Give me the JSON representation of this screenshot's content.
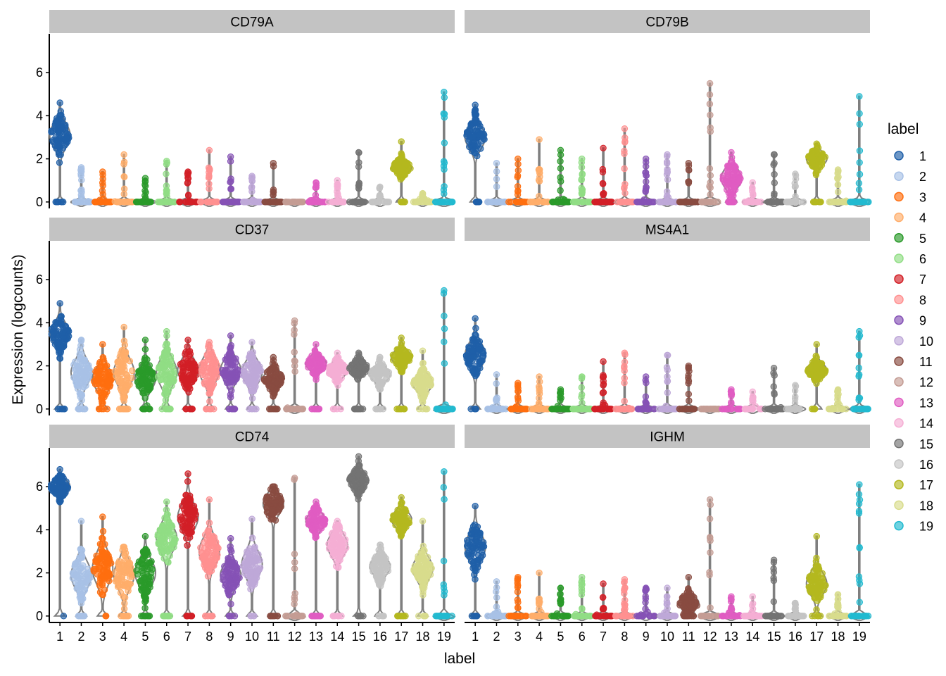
{
  "chart_data": {
    "type": "violin",
    "xlabel": "label",
    "ylabel": "Expression (logcounts)",
    "ylim": [
      -0.3,
      7.8
    ],
    "yticks": [
      0,
      2,
      4,
      6
    ],
    "categories": [
      "1",
      "2",
      "3",
      "4",
      "5",
      "6",
      "7",
      "8",
      "9",
      "10",
      "11",
      "12",
      "13",
      "14",
      "15",
      "16",
      "17",
      "18",
      "19"
    ],
    "legend": {
      "title": "label",
      "position": "right",
      "items": [
        {
          "label": "1",
          "color": "#1f5fa8"
        },
        {
          "label": "2",
          "color": "#a8c1e6"
        },
        {
          "label": "3",
          "color": "#ff6e0f"
        },
        {
          "label": "4",
          "color": "#ffad6a"
        },
        {
          "label": "5",
          "color": "#2a9a2a"
        },
        {
          "label": "6",
          "color": "#90dd84"
        },
        {
          "label": "7",
          "color": "#d21f26"
        },
        {
          "label": "8",
          "color": "#ff9090"
        },
        {
          "label": "9",
          "color": "#8552b6"
        },
        {
          "label": "10",
          "color": "#bea8d8"
        },
        {
          "label": "11",
          "color": "#894b40"
        },
        {
          "label": "12",
          "color": "#c49c94"
        },
        {
          "label": "13",
          "color": "#e05cc2"
        },
        {
          "label": "14",
          "color": "#f5aed4"
        },
        {
          "label": "15",
          "color": "#737373"
        },
        {
          "label": "16",
          "color": "#c4c4c4"
        },
        {
          "label": "17",
          "color": "#b4b81f"
        },
        {
          "label": "18",
          "color": "#d8dc8c"
        },
        {
          "label": "19",
          "color": "#22bad0"
        }
      ]
    },
    "panels": [
      {
        "title": "CD79A",
        "max": [
          4.6,
          1.6,
          1.4,
          2.2,
          1.1,
          1.9,
          1.4,
          2.4,
          2.1,
          1.2,
          1.8,
          0.0,
          0.9,
          1.0,
          2.3,
          0.7,
          2.8,
          0.4,
          5.1
        ],
        "center": [
          3.1,
          0,
          0,
          0,
          0,
          0,
          0,
          0,
          0,
          0,
          0,
          0,
          0,
          0,
          0,
          0,
          1.6,
          0,
          0
        ],
        "spread": [
          0.55,
          0.1,
          0.1,
          0.1,
          0.1,
          0.1,
          0.1,
          0.1,
          0.1,
          0.1,
          0.1,
          0.1,
          0.1,
          0.1,
          0.1,
          0.1,
          0.25,
          0.1,
          0.1
        ]
      },
      {
        "title": "CD79B",
        "max": [
          4.5,
          1.8,
          2.0,
          2.9,
          2.4,
          2.0,
          2.5,
          3.4,
          2.0,
          2.2,
          1.8,
          5.5,
          2.3,
          0.9,
          2.2,
          1.3,
          2.7,
          1.5,
          4.9
        ],
        "center": [
          3.0,
          0,
          0,
          0,
          0,
          0,
          0,
          0,
          0,
          0,
          0,
          0,
          1.1,
          0,
          0,
          0,
          2.0,
          0,
          0
        ],
        "spread": [
          0.5,
          0.1,
          0.1,
          0.1,
          0.1,
          0.1,
          0.1,
          0.1,
          0.1,
          0.1,
          0.1,
          0.1,
          0.45,
          0.1,
          0.1,
          0.1,
          0.3,
          0.1,
          0.1
        ]
      },
      {
        "title": "CD37",
        "max": [
          4.9,
          3.2,
          3.0,
          3.8,
          3.2,
          3.6,
          3.2,
          3.1,
          3.4,
          3.1,
          2.4,
          4.1,
          3.0,
          2.6,
          2.6,
          2.4,
          3.3,
          2.7,
          5.5
        ],
        "center": [
          3.5,
          1.7,
          1.4,
          1.7,
          1.4,
          1.7,
          1.8,
          1.8,
          1.8,
          1.7,
          1.4,
          0,
          2.1,
          1.8,
          1.9,
          1.6,
          2.4,
          1.2,
          0
        ],
        "spread": [
          0.45,
          0.55,
          0.5,
          0.6,
          0.5,
          0.6,
          0.5,
          0.55,
          0.5,
          0.5,
          0.35,
          0.1,
          0.3,
          0.3,
          0.25,
          0.3,
          0.3,
          0.35,
          0.1
        ]
      },
      {
        "title": "MS4A1",
        "max": [
          4.2,
          1.6,
          1.2,
          1.5,
          0.9,
          1.5,
          2.2,
          2.6,
          1.5,
          2.5,
          2.0,
          0.0,
          0.9,
          0.8,
          1.9,
          1.1,
          3.0,
          0.9,
          3.6
        ],
        "center": [
          2.5,
          0,
          0,
          0,
          0,
          0,
          0,
          0,
          0,
          0,
          0,
          0,
          0,
          0,
          0,
          0,
          1.8,
          0,
          0
        ],
        "spread": [
          0.55,
          0.1,
          0.1,
          0.1,
          0.1,
          0.1,
          0.1,
          0.1,
          0.1,
          0.1,
          0.1,
          0.1,
          0.1,
          0.1,
          0.1,
          0.1,
          0.3,
          0.1,
          0.1
        ]
      },
      {
        "title": "CD74",
        "max": [
          6.8,
          4.4,
          4.6,
          3.2,
          3.7,
          5.3,
          6.6,
          5.4,
          3.6,
          4.5,
          6.0,
          6.4,
          5.3,
          4.4,
          7.4,
          3.3,
          5.5,
          4.4,
          6.7
        ],
        "center": [
          6.0,
          1.9,
          2.2,
          1.9,
          2.0,
          3.6,
          4.6,
          3.0,
          1.9,
          2.4,
          5.2,
          0,
          4.4,
          3.3,
          6.3,
          2.3,
          4.5,
          2.2,
          0
        ],
        "spread": [
          0.3,
          0.6,
          0.7,
          0.6,
          0.6,
          0.6,
          0.6,
          0.6,
          0.5,
          0.6,
          0.45,
          0.1,
          0.35,
          0.5,
          0.35,
          0.4,
          0.35,
          0.5,
          0.1
        ]
      },
      {
        "title": "IGHM",
        "max": [
          5.1,
          1.6,
          1.8,
          2.0,
          1.3,
          1.8,
          1.5,
          1.7,
          1.3,
          1.3,
          1.8,
          5.4,
          0.9,
          0.9,
          2.6,
          0.6,
          3.7,
          1.0,
          6.1
        ],
        "center": [
          3.2,
          0,
          0,
          0,
          0,
          0,
          0,
          0,
          0,
          0,
          0.6,
          0,
          0,
          0,
          0,
          0,
          1.5,
          0,
          0
        ],
        "spread": [
          0.6,
          0.1,
          0.1,
          0.1,
          0.1,
          0.1,
          0.1,
          0.1,
          0.1,
          0.1,
          0.3,
          0.1,
          0.1,
          0.1,
          0.1,
          0.1,
          0.5,
          0.1,
          0.1
        ]
      }
    ]
  }
}
